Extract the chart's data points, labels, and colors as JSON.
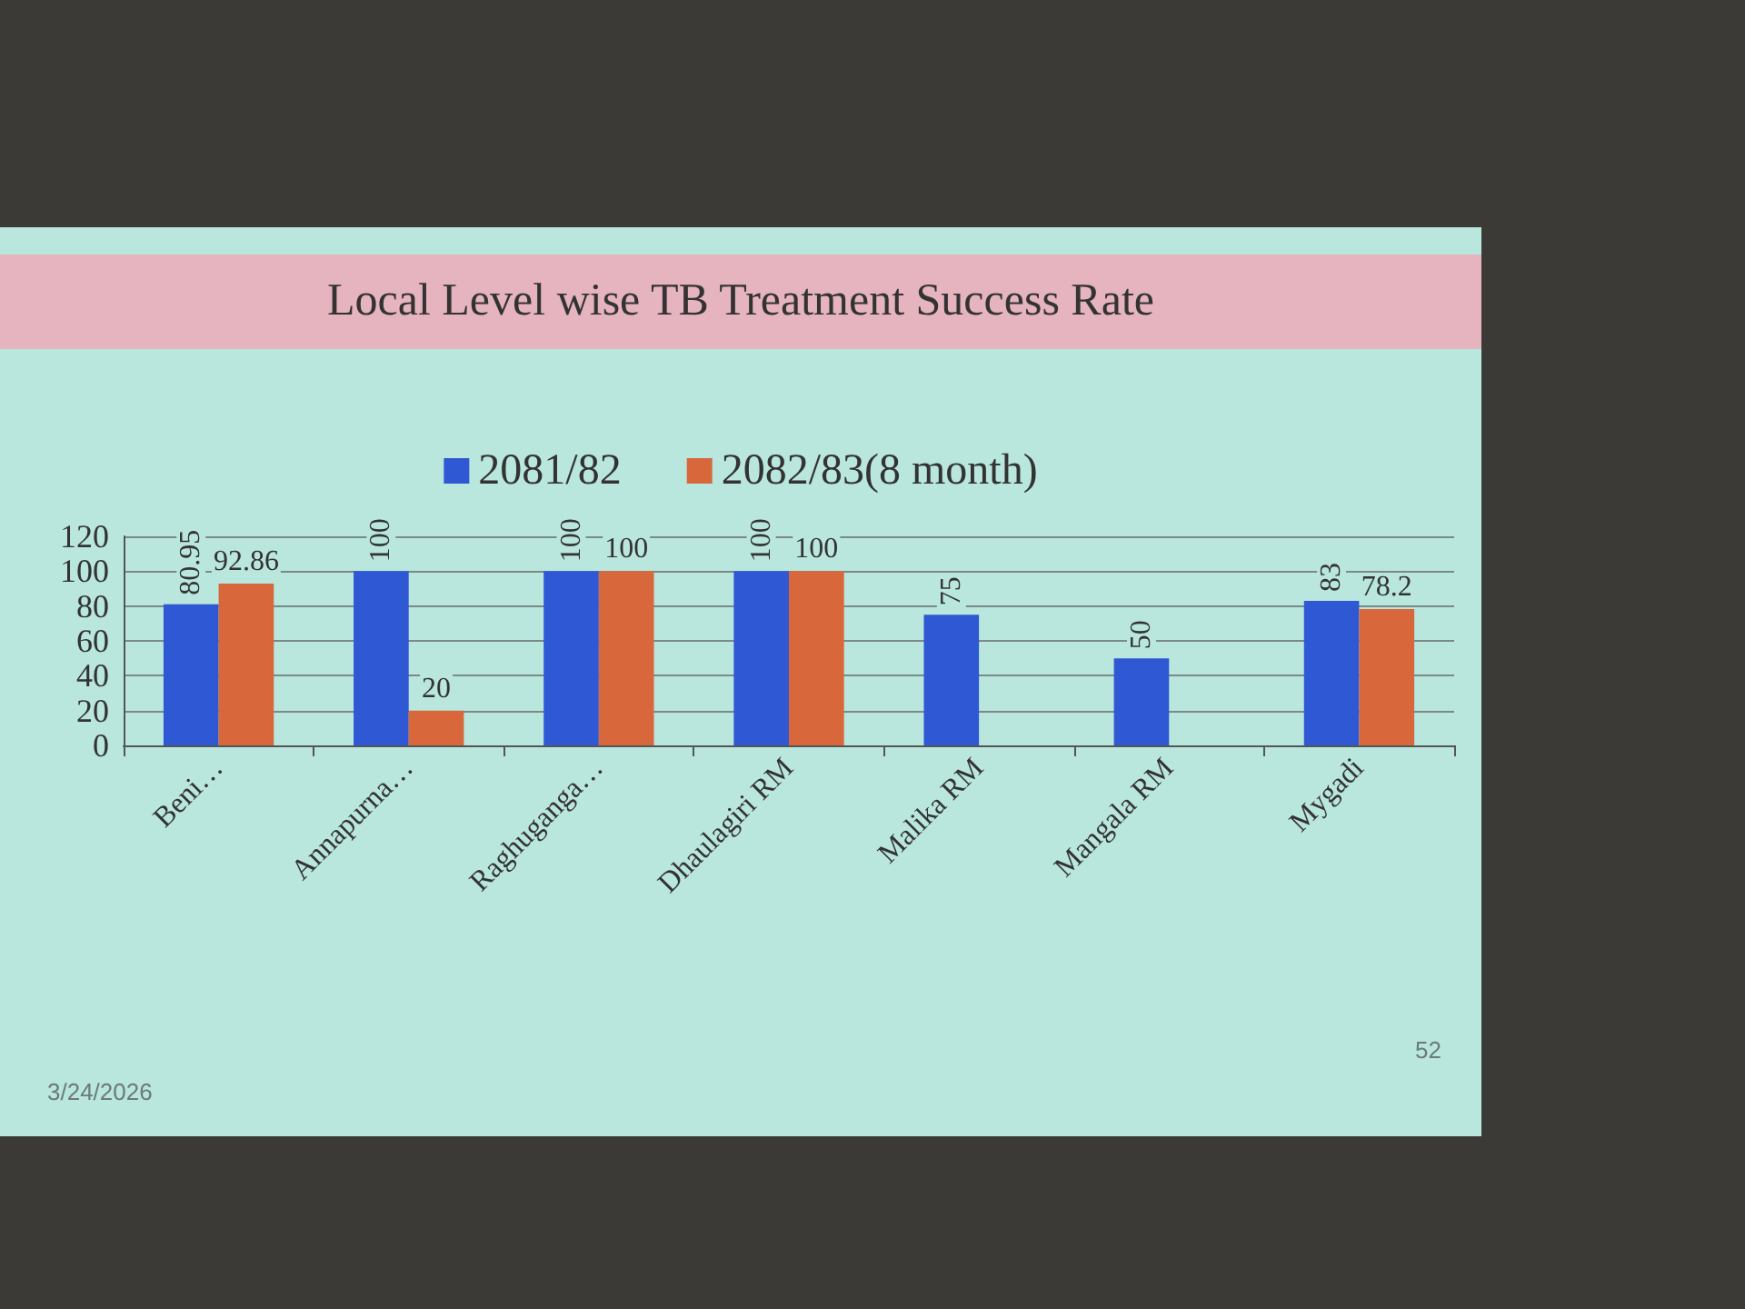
{
  "chart_data": {
    "type": "bar",
    "title": "Local Level wise TB Treatment Success Rate",
    "categories": [
      "Beni…",
      "Annapurna…",
      "Raghuganga…",
      "Dhaulagiri RM",
      "Malika RM",
      "Mangala RM",
      "Mygadi"
    ],
    "series": [
      {
        "name": "2081/82",
        "color": "#2f58d4",
        "values": [
          80.95,
          100,
          100,
          100,
          75,
          50,
          83
        ]
      },
      {
        "name": "2082/83(8 month)",
        "color": "#d8683c",
        "values": [
          92.86,
          20,
          100,
          100,
          null,
          null,
          78.2
        ]
      }
    ],
    "ylim": [
      0,
      120
    ],
    "yticks": [
      0,
      20,
      40,
      60,
      80,
      100,
      120
    ],
    "grid": "y",
    "legend": "top",
    "data_labels": true,
    "annotations": [
      "3/24/2026",
      "52"
    ]
  }
}
